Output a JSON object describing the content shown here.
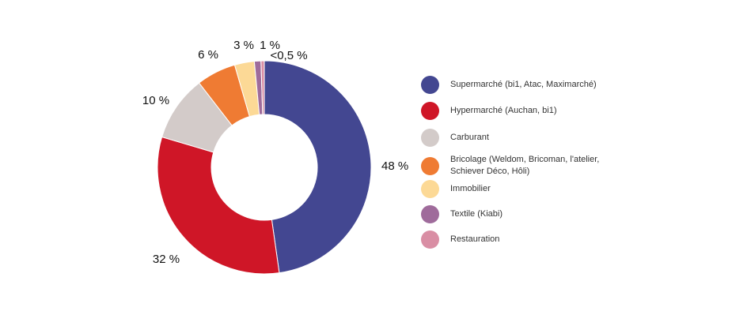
{
  "chart_data": {
    "type": "pie",
    "donut": true,
    "title": "",
    "legend_position": "right",
    "slices": [
      {
        "label": "Supermarché (bi1, Atac, Maximarché)",
        "value": 48,
        "display": "48 %",
        "color": "#434791"
      },
      {
        "label": "Hypermarché (Auchan, bi1)",
        "value": 32,
        "display": "32 %",
        "color": "#cf1627"
      },
      {
        "label": "Carburant",
        "value": 10,
        "display": "10 %",
        "color": "#d3cbc9"
      },
      {
        "label": "Bricolage (Weldom, Bricoman, l'atelier,\nSchiever Déco, Hôli)",
        "value": 6,
        "display": "6 %",
        "color": "#ef7b33"
      },
      {
        "label": "Immobilier",
        "value": 3,
        "display": "3 %",
        "color": "#fcd996"
      },
      {
        "label": "Textile (Kiabi)",
        "value": 1,
        "display": "1 %",
        "color": "#9f6b9b"
      },
      {
        "label": "Restauration",
        "value": 0.5,
        "display": "<0,5 %",
        "color": "#d98ea4"
      }
    ]
  }
}
